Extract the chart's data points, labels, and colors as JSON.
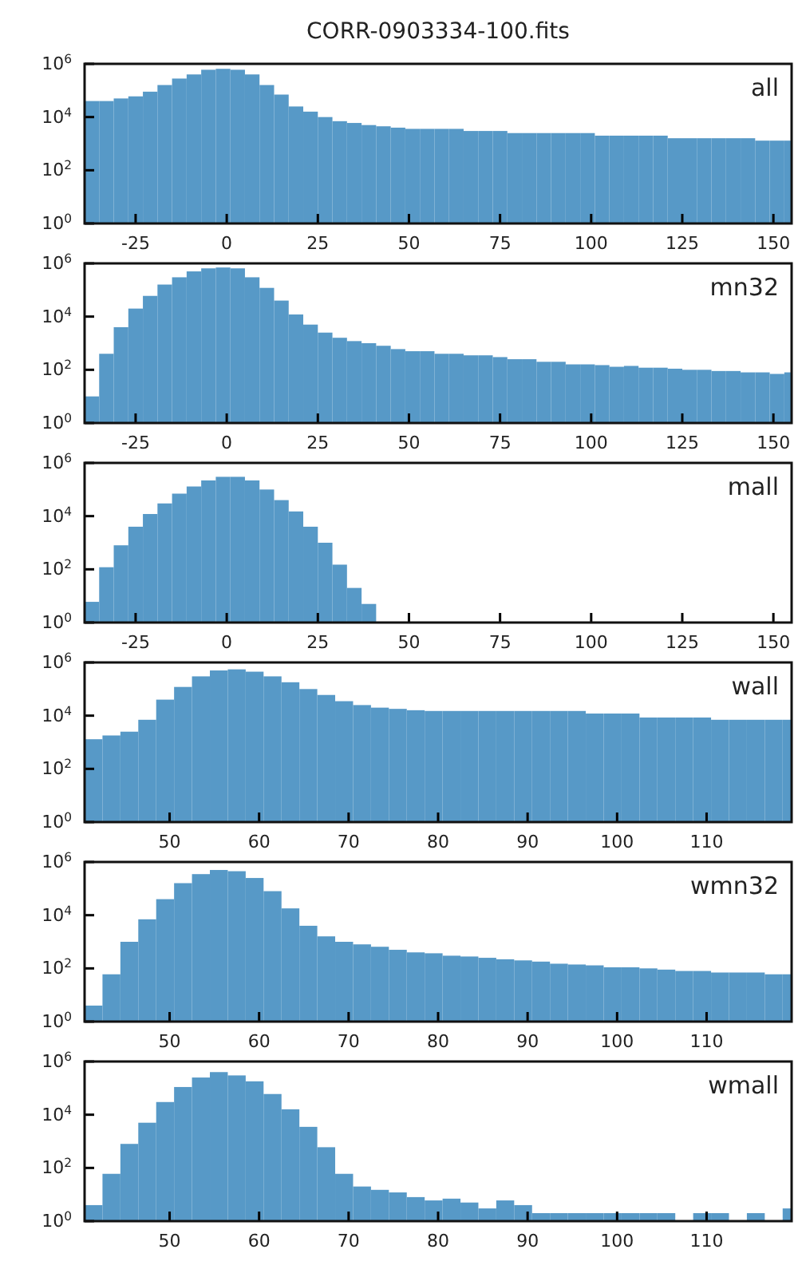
{
  "chart_data": [
    {
      "type": "histogram",
      "title": "CORR-0903334-100.fits",
      "annotations": [
        "all"
      ],
      "color": "#5799c7",
      "log": true,
      "grid": false,
      "bins": [
        -39,
        -35,
        -31,
        -27,
        -23,
        -19,
        -15,
        -11,
        -7,
        -3,
        1,
        5,
        9,
        13,
        17,
        21,
        25,
        29,
        33,
        37,
        41,
        45,
        49,
        53,
        57,
        61,
        65,
        69,
        73,
        77,
        81,
        85,
        89,
        93,
        97,
        101,
        105,
        109,
        113,
        117,
        121,
        125,
        129,
        133,
        137,
        141,
        145,
        149,
        153,
        155
      ],
      "values": [
        40000.0,
        40000.0,
        50000.0,
        60000.0,
        90000.0,
        160000.0,
        280000.0,
        400000.0,
        600000.0,
        650000.0,
        600000.0,
        400000.0,
        160000.0,
        70000.0,
        25000.0,
        16000.0,
        10000.0,
        7000.0,
        6000.0,
        5000.0,
        4500.0,
        4000.0,
        3600.0,
        3600.0,
        3600.0,
        3600.0,
        3000.0,
        3000.0,
        3000.0,
        2500.0,
        2500.0,
        2500.0,
        2500.0,
        2500.0,
        2500.0,
        2000.0,
        2000.0,
        2000.0,
        2000.0,
        2000.0,
        1600.0,
        1600.0,
        1600.0,
        1600.0,
        1600.0,
        1600.0,
        1300.0,
        1300.0,
        1300.0
      ],
      "xlim": [
        -39,
        155
      ],
      "xticks": [
        -25,
        0,
        25,
        50,
        75,
        100,
        125,
        150
      ],
      "ylim": [
        1,
        1000000
      ],
      "yticks": [
        {
          "value": 1,
          "label": "10$^{0}$"
        },
        {
          "value": 100,
          "label": "10$^{2}$"
        },
        {
          "value": 10000,
          "label": "10$^{4}$"
        },
        {
          "value": 1000000,
          "label": "10$^{6}$"
        }
      ]
    },
    {
      "type": "histogram",
      "annotations": [
        "mn32"
      ],
      "color": "#5799c7",
      "log": true,
      "grid": false,
      "bins": [
        -39,
        -35,
        -31,
        -27,
        -23,
        -19,
        -15,
        -11,
        -7,
        -3,
        1,
        5,
        9,
        13,
        17,
        21,
        25,
        29,
        33,
        37,
        41,
        45,
        49,
        53,
        57,
        61,
        65,
        69,
        73,
        77,
        81,
        85,
        89,
        93,
        97,
        101,
        105,
        109,
        113,
        117,
        121,
        125,
        129,
        133,
        137,
        141,
        145,
        149,
        153,
        155
      ],
      "values": [
        10.0,
        400.0,
        4000.0,
        20000.0,
        60000.0,
        160000.0,
        300000.0,
        500000.0,
        650000.0,
        700000.0,
        650000.0,
        300000.0,
        120000.0,
        40000.0,
        12000.0,
        5000.0,
        2500.0,
        1600.0,
        1200.0,
        1000.0,
        800.0,
        600.0,
        500.0,
        500.0,
        400.0,
        400.0,
        350.0,
        350.0,
        300.0,
        250.0,
        250.0,
        200.0,
        200.0,
        160.0,
        160.0,
        150.0,
        130.0,
        140.0,
        120.0,
        120.0,
        110.0,
        100.0,
        100.0,
        90.0,
        90.0,
        80.0,
        80.0,
        70.0,
        80.0
      ],
      "xlim": [
        -39,
        155
      ],
      "xticks": [
        -25,
        0,
        25,
        50,
        75,
        100,
        125,
        150
      ],
      "ylim": [
        1,
        1000000
      ],
      "yticks": [
        {
          "value": 1,
          "label": "10$^{0}$"
        },
        {
          "value": 100,
          "label": "10$^{2}$"
        },
        {
          "value": 10000,
          "label": "10$^{4}$"
        },
        {
          "value": 1000000,
          "label": "10$^{6}$"
        }
      ]
    },
    {
      "type": "histogram",
      "annotations": [
        "mall"
      ],
      "color": "#5799c7",
      "log": true,
      "grid": false,
      "bins": [
        -39,
        -35,
        -31,
        -27,
        -23,
        -19,
        -15,
        -11,
        -7,
        -3,
        1,
        5,
        9,
        13,
        17,
        21,
        25,
        29,
        33,
        37,
        41
      ],
      "values": [
        6,
        120.0,
        800.0,
        4000.0,
        12000.0,
        30000.0,
        70000.0,
        130000.0,
        220000.0,
        300000.0,
        300000.0,
        220000.0,
        100000.0,
        40000.0,
        15000.0,
        4000.0,
        1000.0,
        150.0,
        20.0,
        5
      ],
      "xlim": [
        -39,
        155
      ],
      "xticks": [
        -25,
        0,
        25,
        50,
        75,
        100,
        125,
        150
      ],
      "ylim": [
        1,
        1000000
      ],
      "yticks": [
        {
          "value": 1,
          "label": "10$^{0}$"
        },
        {
          "value": 100,
          "label": "10$^{2}$"
        },
        {
          "value": 10000,
          "label": "10$^{4}$"
        },
        {
          "value": 1000000,
          "label": "10$^{6}$"
        }
      ]
    },
    {
      "type": "histogram",
      "annotations": [
        "wall"
      ],
      "color": "#5799c7",
      "log": true,
      "grid": false,
      "bins": [
        40.5,
        42.5,
        44.5,
        46.5,
        48.5,
        50.5,
        52.5,
        54.5,
        56.5,
        58.5,
        60.5,
        62.5,
        64.5,
        66.5,
        68.5,
        70.5,
        72.5,
        74.5,
        76.5,
        78.5,
        80.5,
        82.5,
        84.5,
        86.5,
        88.5,
        90.5,
        92.5,
        94.5,
        96.5,
        98.5,
        100.5,
        102.5,
        104.5,
        106.5,
        108.5,
        110.5,
        112.5,
        114.5,
        116.5,
        118.5,
        119.5
      ],
      "values": [
        1300.0,
        1800.0,
        2500.0,
        7000.0,
        40000.0,
        120000.0,
        300000.0,
        500000.0,
        550000.0,
        450000.0,
        300000.0,
        180000.0,
        100000.0,
        60000.0,
        35000.0,
        25000.0,
        20000.0,
        18000.0,
        16000.0,
        15000.0,
        15000.0,
        15000.0,
        15000.0,
        15000.0,
        15000.0,
        15000.0,
        15000.0,
        15000.0,
        12000.0,
        12000.0,
        12000.0,
        8500.0,
        8500.0,
        8500.0,
        8500.0,
        7000.0,
        7000.0,
        7000.0,
        7000.0,
        7000.0
      ],
      "xlim": [
        40.5,
        119.5
      ],
      "xticks": [
        50,
        60,
        70,
        80,
        90,
        100,
        110
      ],
      "ylim": [
        1,
        1000000
      ],
      "yticks": [
        {
          "value": 1,
          "label": "10$^{0}$"
        },
        {
          "value": 100,
          "label": "10$^{2}$"
        },
        {
          "value": 10000,
          "label": "10$^{4}$"
        },
        {
          "value": 1000000,
          "label": "10$^{6}$"
        }
      ]
    },
    {
      "type": "histogram",
      "annotations": [
        "wmn32"
      ],
      "color": "#5799c7",
      "log": true,
      "grid": false,
      "bins": [
        40.5,
        42.5,
        44.5,
        46.5,
        48.5,
        50.5,
        52.5,
        54.5,
        56.5,
        58.5,
        60.5,
        62.5,
        64.5,
        66.5,
        68.5,
        70.5,
        72.5,
        74.5,
        76.5,
        78.5,
        80.5,
        82.5,
        84.5,
        86.5,
        88.5,
        90.5,
        92.5,
        94.5,
        96.5,
        98.5,
        100.5,
        102.5,
        104.5,
        106.5,
        108.5,
        110.5,
        112.5,
        114.5,
        116.5,
        118.5,
        119.5
      ],
      "values": [
        4,
        60.0,
        1000.0,
        7000.0,
        40000.0,
        160000.0,
        350000.0,
        500000.0,
        450000.0,
        250000.0,
        80000.0,
        18000.0,
        4000.0,
        1600.0,
        1000.0,
        800.0,
        650.0,
        500.0,
        400.0,
        370.0,
        300.0,
        280.0,
        250.0,
        220.0,
        200.0,
        180.0,
        150.0,
        140.0,
        130.0,
        110.0,
        110.0,
        100.0,
        90.0,
        80.0,
        80.0,
        70.0,
        70.0,
        70.0,
        60.0,
        60.0
      ],
      "xlim": [
        40.5,
        119.5
      ],
      "xticks": [
        50,
        60,
        70,
        80,
        90,
        100,
        110
      ],
      "ylim": [
        1,
        1000000
      ],
      "yticks": [
        {
          "value": 1,
          "label": "10$^{0}$"
        },
        {
          "value": 100,
          "label": "10$^{2}$"
        },
        {
          "value": 10000,
          "label": "10$^{4}$"
        },
        {
          "value": 1000000,
          "label": "10$^{6}$"
        }
      ]
    },
    {
      "type": "histogram",
      "annotations": [
        "wmall"
      ],
      "color": "#5799c7",
      "log": true,
      "grid": false,
      "bins": [
        40.5,
        42.5,
        44.5,
        46.5,
        48.5,
        50.5,
        52.5,
        54.5,
        56.5,
        58.5,
        60.5,
        62.5,
        64.5,
        66.5,
        68.5,
        70.5,
        72.5,
        74.5,
        76.5,
        78.5,
        80.5,
        82.5,
        84.5,
        86.5,
        88.5,
        90.5,
        92.5,
        94.5,
        96.5,
        98.5,
        100.5,
        102.5,
        104.5,
        106.5,
        108.5,
        110.5,
        112.5,
        114.5,
        116.5,
        118.5,
        119.5
      ],
      "values": [
        4,
        60.0,
        800.0,
        5000.0,
        30000.0,
        110000.0,
        250000.0,
        400000.0,
        300000.0,
        180000.0,
        60000.0,
        16000.0,
        3500.0,
        600.0,
        60.0,
        20.0,
        15.0,
        12.0,
        8,
        6,
        7,
        5,
        3,
        6,
        4,
        2,
        2,
        2,
        2,
        2,
        2,
        2,
        2,
        null,
        2,
        2,
        null,
        2,
        null,
        3
      ],
      "xlim": [
        40.5,
        119.5
      ],
      "xticks": [
        50,
        60,
        70,
        80,
        90,
        100,
        110
      ],
      "ylim": [
        1,
        1000000
      ],
      "yticks": [
        {
          "value": 1,
          "label": "10$^{0}$"
        },
        {
          "value": 100,
          "label": "10$^{2}$"
        },
        {
          "value": 10000,
          "label": "10$^{4}$"
        },
        {
          "value": 1000000,
          "label": "10$^{6}$"
        }
      ]
    }
  ]
}
